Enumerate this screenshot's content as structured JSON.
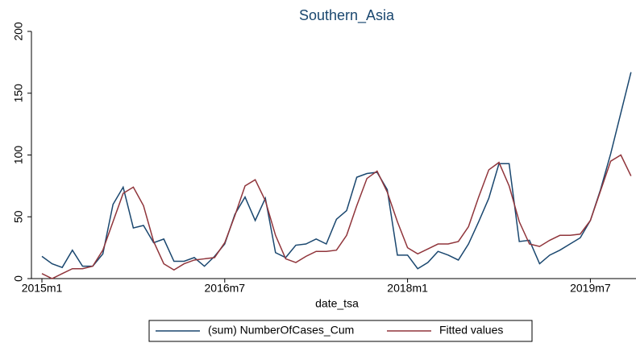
{
  "chart_data": {
    "type": "line",
    "title": "Southern_Asia",
    "x_label": "date_tsa",
    "categories": [
      "2015m1",
      null,
      null,
      null,
      null,
      null,
      null,
      null,
      null,
      null,
      null,
      null,
      null,
      null,
      null,
      null,
      null,
      null,
      "2016m7",
      null,
      null,
      null,
      null,
      null,
      null,
      null,
      null,
      null,
      null,
      null,
      null,
      null,
      null,
      null,
      null,
      null,
      "2018m1",
      null,
      null,
      null,
      null,
      null,
      null,
      null,
      null,
      null,
      null,
      null,
      null,
      null,
      null,
      null,
      null,
      null,
      "2019m7",
      null,
      null,
      null,
      null
    ],
    "series": [
      {
        "name": "(sum) NumberOfCases_Cum",
        "color": "#1a476f",
        "values": [
          18,
          12,
          9,
          23,
          10,
          10,
          20,
          60,
          74,
          41,
          43,
          29,
          32,
          14,
          14,
          17,
          10,
          18,
          28,
          52,
          66,
          47,
          65,
          21,
          17,
          27,
          28,
          32,
          28,
          48,
          55,
          82,
          85,
          86,
          72,
          19,
          19,
          8,
          13,
          22,
          19,
          15,
          28,
          46,
          65,
          93,
          93,
          30,
          31,
          12,
          19,
          23,
          28,
          33,
          47,
          72,
          101,
          134,
          167
        ]
      },
      {
        "name": "Fitted values",
        "color": "#90353b",
        "values": [
          4,
          0,
          4,
          8,
          8,
          10,
          23,
          46,
          69,
          74,
          59,
          30,
          12,
          7,
          12,
          15,
          16,
          17,
          29,
          51,
          75,
          80,
          63,
          35,
          16,
          13,
          18,
          22,
          22,
          23,
          35,
          59,
          81,
          87,
          70,
          46,
          25,
          20,
          24,
          28,
          28,
          30,
          42,
          66,
          88,
          94,
          75,
          46,
          28,
          26,
          31,
          35,
          35,
          36,
          47,
          71,
          95,
          100,
          83
        ]
      }
    ],
    "ylim": [
      0,
      200
    ],
    "yticks": [
      0,
      50,
      100,
      150,
      200
    ],
    "grid": false,
    "legend": "bottom"
  }
}
